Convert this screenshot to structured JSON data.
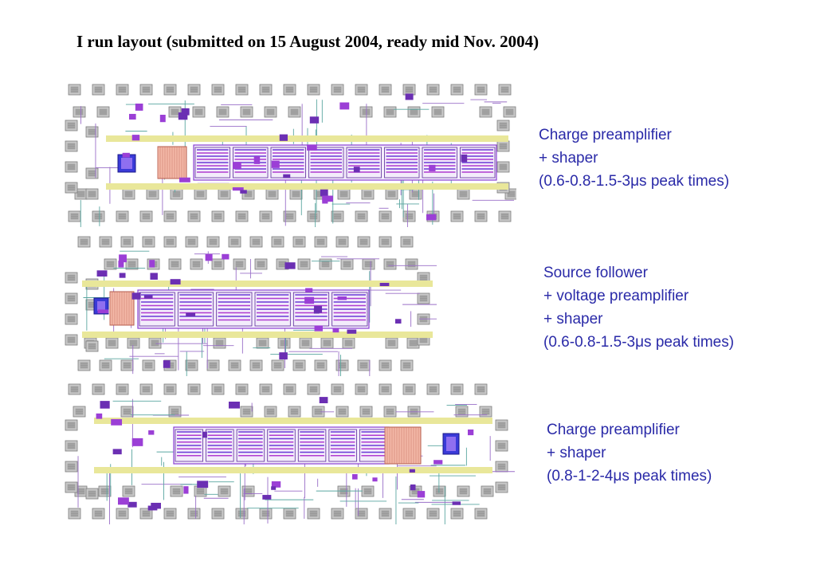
{
  "title": "I run layout (submitted on 15 August 2004, ready mid Nov. 2004)",
  "layouts": [
    {
      "lines": [
        "Charge preamplifier",
        "+ shaper",
        "(0.6-0.8-1.5-3μs peak times)"
      ]
    },
    {
      "lines": [
        "Source follower",
        "+ voltage preamplifier",
        "+ shaper",
        "(0.6-0.8-1.5-3μs peak times)"
      ]
    },
    {
      "lines": [
        "Charge preamplifier",
        "+ shaper",
        "(0.8-1-2-4μs peak times)"
      ]
    }
  ],
  "colors": {
    "text_blue": "#2a2aa8",
    "pad_gray": "#a6a6a6",
    "metal_purple": "#8a3fd1",
    "rail_yellow": "#e9e79a",
    "wire_teal": "#5aa6a0"
  }
}
